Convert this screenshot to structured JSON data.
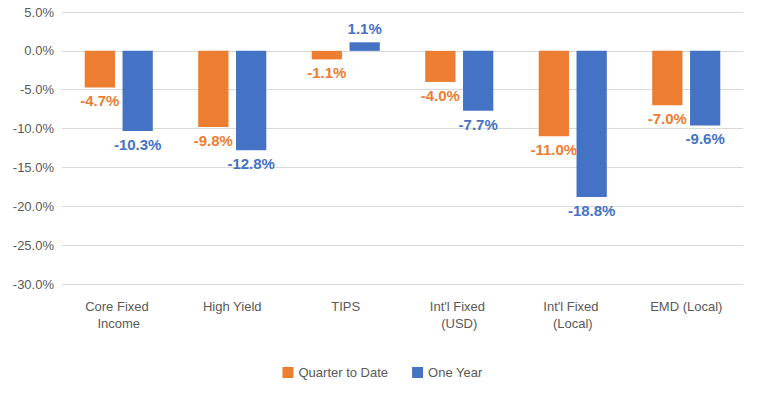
{
  "chart_data": {
    "type": "bar",
    "categories": [
      "Core Fixed Income",
      "High Yield",
      "TIPS",
      "Int'l Fixed (USD)",
      "Int'l Fixed (Local)",
      "EMD (Local)"
    ],
    "series": [
      {
        "name": "Quarter to Date",
        "color": "#ed7d31",
        "values": [
          -4.7,
          -9.8,
          -1.1,
          -4.0,
          -11.0,
          -7.0
        ],
        "value_labels": [
          "-4.7%",
          "-9.8%",
          "-1.1%",
          "-4.0%",
          "-11.0%",
          "-7.0%"
        ]
      },
      {
        "name": "One Year",
        "color": "#4472c4",
        "values": [
          -10.3,
          -12.8,
          1.1,
          -7.7,
          -18.8,
          -9.6
        ],
        "value_labels": [
          "-10.3%",
          "-12.8%",
          "1.1%",
          "-7.7%",
          "-18.8%",
          "-9.6%"
        ]
      }
    ],
    "ylim": [
      -30,
      5
    ],
    "yticks": [
      {
        "value": -30,
        "label": "-30.0%"
      },
      {
        "value": -25,
        "label": "-25.0%"
      },
      {
        "value": -20,
        "label": "-20.0%"
      },
      {
        "value": -15,
        "label": "-15.0%"
      },
      {
        "value": -10,
        "label": "-10.0%"
      },
      {
        "value": -5,
        "label": "-5.0%"
      },
      {
        "value": 0,
        "label": "0.0%"
      },
      {
        "value": 5,
        "label": "5.0%"
      }
    ],
    "grid": true,
    "legend": "bottom",
    "data_labels": true
  }
}
